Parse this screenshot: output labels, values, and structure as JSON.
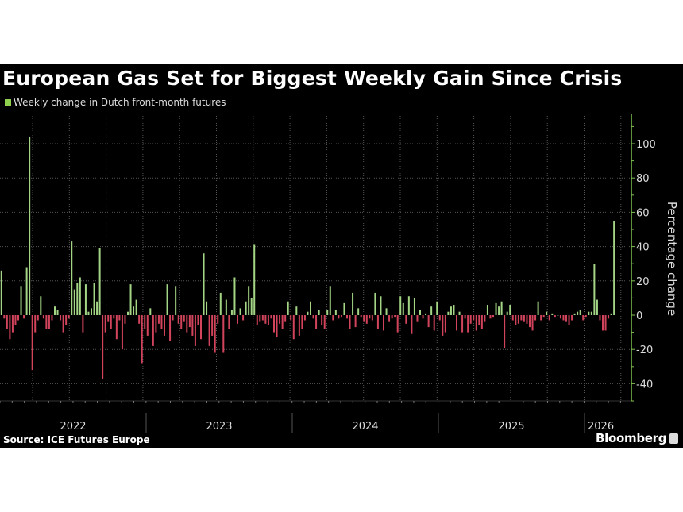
{
  "title": "European Gas Set for Biggest Weekly Gain Since Crisis",
  "source": "Source: ICE Futures Europe",
  "brand": "Bloomberg",
  "colors": {
    "positive": "#a3d585",
    "negative": "#d2445c",
    "legend": "#8fd14f",
    "axis": "#7fbf4f",
    "grid": "#555555"
  },
  "chart_data": {
    "type": "bar",
    "legend": [
      {
        "name": "Weekly change in Dutch front-month futures",
        "color": "#8fd14f"
      }
    ],
    "ylabel": "Percentage change",
    "ylim": [
      -50,
      117
    ],
    "yticks": [
      "100",
      "80",
      "60",
      "40",
      "20",
      "0",
      "-20",
      "-40"
    ],
    "ytick_values": [
      100,
      80,
      60,
      40,
      20,
      0,
      -20,
      -40
    ],
    "grid": true,
    "legend_position": "top-left",
    "x_frequency": "weekly",
    "years": [
      {
        "year": "2022",
        "values": [
          26,
          -2,
          -8,
          -14,
          -10,
          -6,
          -3,
          17,
          -2,
          28,
          104,
          -32,
          -10,
          -3,
          11,
          -2,
          -8,
          -8,
          -3,
          5,
          3,
          -3,
          -10,
          -6,
          -2,
          43,
          15,
          19,
          22,
          -10,
          18,
          2,
          4,
          19,
          8,
          39,
          -37,
          -10,
          -4,
          -8,
          -2,
          -14,
          -3,
          -20,
          -5,
          2,
          18,
          5,
          9,
          -5,
          -28,
          -8
        ]
      },
      {
        "year": "2023",
        "values": [
          -12,
          4,
          -18,
          -10,
          -5,
          -8,
          -12,
          18,
          -15,
          -3,
          17,
          -5,
          -8,
          -4,
          -10,
          -7,
          -12,
          -18,
          -6,
          -14,
          36,
          8,
          -18,
          -12,
          -22,
          -5,
          13,
          -22,
          9,
          -8,
          3,
          22,
          -5,
          4,
          -3,
          8,
          17,
          10,
          41,
          -6,
          -4,
          -3,
          -5,
          -6,
          -2,
          -10,
          -13,
          -5,
          -8,
          -4,
          8,
          -3
        ]
      },
      {
        "year": "2024",
        "values": [
          -14,
          5,
          -12,
          -8,
          -3,
          2,
          8,
          -2,
          -8,
          3,
          -6,
          -8,
          3,
          17,
          -3,
          3,
          -2,
          -1,
          7,
          -2,
          -8,
          13,
          -7,
          4,
          -1,
          -4,
          -5,
          -2,
          -3,
          13,
          -8,
          11,
          -9,
          4,
          -4,
          -2,
          -1,
          -10,
          11,
          7,
          -5,
          11,
          -11,
          10,
          -4,
          3,
          -2,
          1,
          -7,
          5,
          -9,
          8
        ]
      },
      {
        "year": "2025",
        "values": [
          -3,
          -12,
          -10,
          2,
          5,
          6,
          -9,
          2,
          -10,
          -2,
          -10,
          -5,
          -3,
          -9,
          -6,
          -8,
          -4,
          6,
          -2,
          -1,
          7,
          5,
          8,
          -19,
          2,
          6,
          -3,
          -6,
          -5,
          -3,
          -4,
          -5,
          -7,
          -9,
          -3,
          8,
          -3,
          -1,
          2,
          -3,
          1,
          -1,
          0,
          -2,
          -3,
          -4,
          -6,
          -3,
          1,
          2,
          3,
          -3
        ]
      },
      {
        "year": "2026",
        "values": [
          -1,
          2,
          2,
          30,
          9,
          -3,
          -9,
          -9,
          -2,
          1,
          55
        ]
      }
    ]
  }
}
